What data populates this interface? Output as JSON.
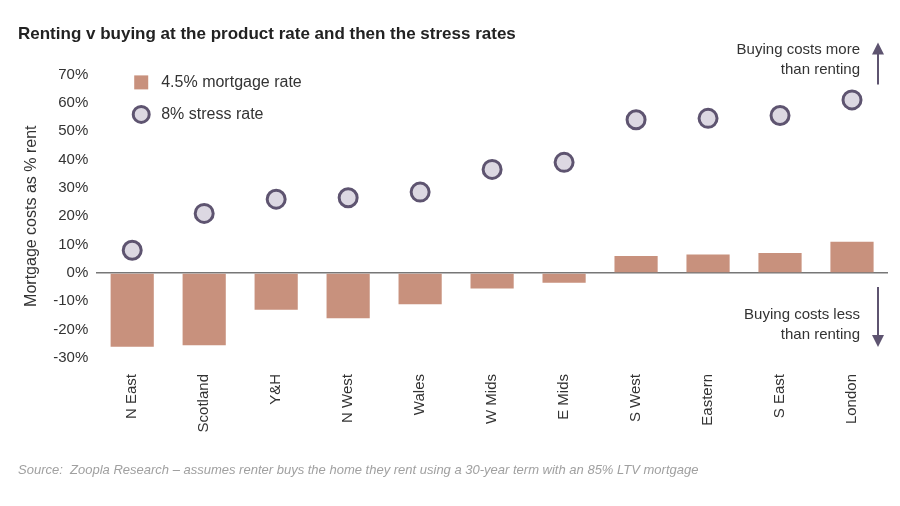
{
  "chart_data": {
    "type": "bar",
    "title": "Renting v buying at the product rate and then the stress rates",
    "y_label": "Mortgage costs as % rent",
    "categories": [
      "N East",
      "Scotland",
      "Y&H",
      "N West",
      "Wales",
      "W Mids",
      "E Mids",
      "S West",
      "Eastern",
      "S East",
      "London"
    ],
    "series": [
      {
        "name": "4.5% mortgage rate",
        "type": "bar",
        "color": "#c8917d",
        "values": [
          -26,
          -25.5,
          -13,
          -16,
          -11,
          -5.5,
          -3.5,
          6,
          6.5,
          7,
          11
        ]
      },
      {
        "name": "8% stress rate",
        "type": "scatter",
        "marker": "circle",
        "color": "#5e5470",
        "values": [
          8,
          21,
          26,
          26.5,
          28.5,
          36.5,
          39,
          54,
          54.5,
          55.5,
          61
        ]
      }
    ],
    "ylim": [
      -30,
      70
    ],
    "yticks": [
      {
        "value": -30,
        "label": "-30%"
      },
      {
        "value": -20,
        "label": "-20%"
      },
      {
        "value": -10,
        "label": "-10%"
      },
      {
        "value": 0,
        "label": "0%"
      },
      {
        "value": 10,
        "label": "10%"
      },
      {
        "value": 20,
        "label": "20%"
      },
      {
        "value": 30,
        "label": "30%"
      },
      {
        "value": 40,
        "label": "40%"
      },
      {
        "value": 50,
        "label": "50%"
      },
      {
        "value": 60,
        "label": "60%"
      },
      {
        "value": 70,
        "label": "70%"
      }
    ],
    "grid": false,
    "legend": "upper left",
    "data_labels": false,
    "annotations": [
      [
        "Buying costs more",
        "than renting"
      ],
      [
        "Buying costs less",
        "than renting"
      ]
    ],
    "source": "Source:  Zoopla Research – assumes renter buys the home they rent using a 30-year term with an 85% LTV mortgage"
  }
}
